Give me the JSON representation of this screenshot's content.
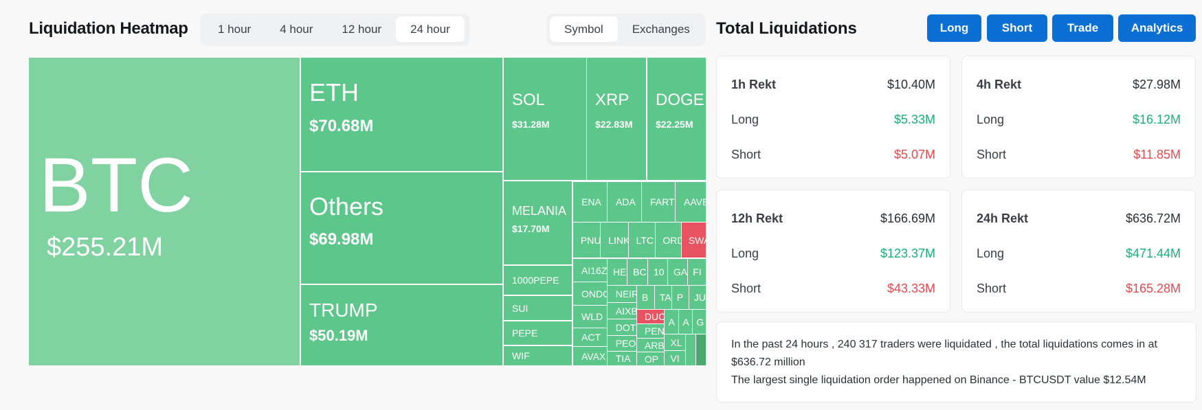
{
  "heatmap": {
    "title": "Liquidation Heatmap",
    "time_tabs": [
      "1 hour",
      "4 hour",
      "12 hour",
      "24 hour"
    ],
    "active_time_tab": "24 hour",
    "view_tabs": [
      "Symbol",
      "Exchanges"
    ],
    "active_view_tab": "Symbol",
    "colors": {
      "long": "#5dc68a",
      "btc": "#80d2a0",
      "short": "#e85361",
      "dark": "#4aa96f"
    },
    "tiles": [
      {
        "name": "BTC",
        "value": "$255.21M"
      },
      {
        "name": "ETH",
        "value": "$70.68M"
      },
      {
        "name": "Others",
        "value": "$69.98M"
      },
      {
        "name": "TRUMP",
        "value": "$50.19M"
      },
      {
        "name": "SOL",
        "value": "$31.28M"
      },
      {
        "name": "XRP",
        "value": "$22.83M"
      },
      {
        "name": "DOGE",
        "value": "$22.25M"
      },
      {
        "name": "MELANIA",
        "value": "$17.70M"
      },
      {
        "name": "1000PEPE"
      },
      {
        "name": "SUI"
      },
      {
        "name": "PEPE"
      },
      {
        "name": "WIF"
      },
      {
        "name": "ENA"
      },
      {
        "name": "ADA"
      },
      {
        "name": "FARTCOIN"
      },
      {
        "name": "AAVE"
      },
      {
        "name": "PNUT"
      },
      {
        "name": "LINK"
      },
      {
        "name": "LTC"
      },
      {
        "name": "ORDI"
      },
      {
        "name": "SWARMS",
        "side": "short"
      },
      {
        "name": "AI16Z"
      },
      {
        "name": "ONDO"
      },
      {
        "name": "WLD"
      },
      {
        "name": "ACT"
      },
      {
        "name": "AVAX"
      },
      {
        "name": "HE"
      },
      {
        "name": "BC"
      },
      {
        "name": "10"
      },
      {
        "name": "GA"
      },
      {
        "name": "FI"
      },
      {
        "name": "NEIRO"
      },
      {
        "name": "AIXBT"
      },
      {
        "name": "DOT"
      },
      {
        "name": "PEOPLE"
      },
      {
        "name": "TIA"
      },
      {
        "name": "B"
      },
      {
        "name": "TA"
      },
      {
        "name": "P"
      },
      {
        "name": "JU"
      },
      {
        "name": "DUCK",
        "side": "short"
      },
      {
        "name": "PENGU"
      },
      {
        "name": "ARB"
      },
      {
        "name": "OP"
      },
      {
        "name": "A"
      },
      {
        "name": "A"
      },
      {
        "name": "G"
      },
      {
        "name": "XL"
      },
      {
        "name": "VI"
      },
      {
        "name": ""
      },
      {
        "name": "",
        "side": "dark"
      }
    ]
  },
  "total": {
    "title": "Total Liquidations",
    "buttons": [
      "Long",
      "Short",
      "Trade",
      "Analytics"
    ],
    "cards": [
      {
        "label": "1h Rekt",
        "total": "$10.40M",
        "long_label": "Long",
        "long": "$5.33M",
        "short_label": "Short",
        "short": "$5.07M"
      },
      {
        "label": "4h Rekt",
        "total": "$27.98M",
        "long_label": "Long",
        "long": "$16.12M",
        "short_label": "Short",
        "short": "$11.85M"
      },
      {
        "label": "12h Rekt",
        "total": "$166.69M",
        "long_label": "Long",
        "long": "$123.37M",
        "short_label": "Short",
        "short": "$43.33M"
      },
      {
        "label": "24h Rekt",
        "total": "$636.72M",
        "long_label": "Long",
        "long": "$471.44M",
        "short_label": "Short",
        "short": "$165.28M"
      }
    ],
    "summary_line1": "In the past 24 hours , 240 317 traders were liquidated , the total liquidations comes in at $636.72 million",
    "summary_line2": "The largest single liquidation order happened on Binance - BTCUSDT value $12.54M"
  }
}
